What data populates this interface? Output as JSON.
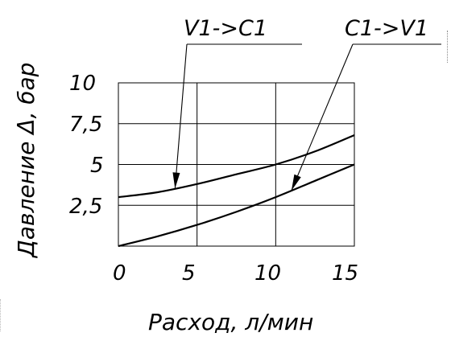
{
  "chart_data": {
    "type": "line",
    "title": "",
    "xlabel": "Расход, л/мин",
    "ylabel": "Давление Δ, бар",
    "xlim": [
      0,
      15
    ],
    "ylim": [
      0,
      10
    ],
    "x_ticks": [
      "0",
      "5",
      "10",
      "15"
    ],
    "y_ticks": [
      "10",
      "7,5",
      "5",
      "2,5"
    ],
    "grid": true,
    "series": [
      {
        "name": "V1->C1",
        "x": [
          0,
          2.5,
          5,
          7.5,
          10,
          12.5,
          15
        ],
        "y": [
          3.0,
          3.3,
          3.8,
          4.4,
          5.0,
          5.8,
          6.8
        ]
      },
      {
        "name": "C1->V1",
        "x": [
          0,
          2.5,
          5,
          7.5,
          10,
          12.5,
          15
        ],
        "y": [
          0.0,
          0.6,
          1.3,
          2.1,
          3.0,
          4.0,
          5.0
        ]
      }
    ],
    "annotations": [
      {
        "text": "V1->C1",
        "series": 0,
        "points_to_x": 3.6
      },
      {
        "text": "C1->V1",
        "series": 1,
        "points_to_x": 11.0
      }
    ]
  }
}
